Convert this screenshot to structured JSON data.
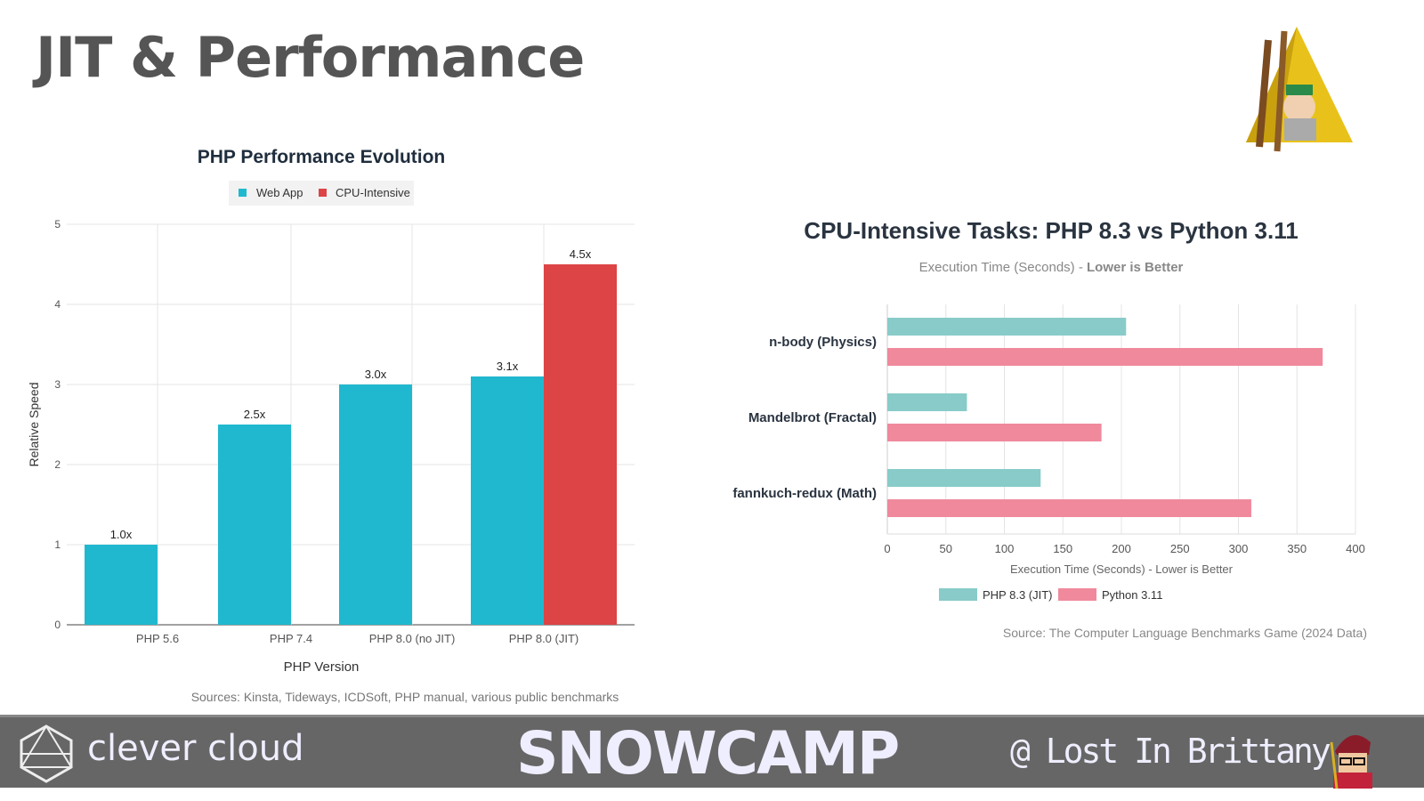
{
  "slide": {
    "title": "JIT & Performance",
    "footer": {
      "left_brand": "clever cloud",
      "center_brand": "SNOWCAMP",
      "right_handle": "@ Lost In Brittany"
    }
  },
  "colors": {
    "web_app": "#20b8cf",
    "cpu_intensive": "#dc4445",
    "php": "#88cbc9",
    "python": "#f0899c",
    "title": "#555555",
    "footer_bg": "#666666"
  },
  "chart_data": [
    {
      "type": "bar",
      "title": "PHP Performance Evolution",
      "xlabel": "PHP Version",
      "ylabel": "Relative Speed",
      "ylim": [
        0,
        5
      ],
      "yticks": [
        "0",
        "1",
        "2",
        "3",
        "4",
        "5"
      ],
      "grid": true,
      "legend_placement": "top",
      "categories": [
        "PHP 5.6",
        "PHP 7.4",
        "PHP 8.0 (no JIT)",
        "PHP 8.0 (JIT)"
      ],
      "series": [
        {
          "name": "Web App",
          "values": [
            1.0,
            2.5,
            3.0,
            3.1
          ],
          "labels": [
            "1.0x",
            "2.5x",
            "3.0x",
            "3.1x"
          ]
        },
        {
          "name": "CPU-Intensive",
          "values": [
            null,
            null,
            null,
            4.5
          ],
          "labels": [
            "",
            "",
            "",
            "4.5x"
          ]
        }
      ],
      "source": "Sources: Kinsta, Tideways, ICDSoft, PHP manual, various public benchmarks"
    },
    {
      "type": "bar",
      "orientation": "horizontal",
      "title": "CPU-Intensive Tasks: PHP 8.3 vs Python 3.11",
      "subtitle_plain": "Execution Time (Seconds) - ",
      "subtitle_bold": "Lower is Better",
      "xlabel": "Execution Time (Seconds) - Lower is Better",
      "xlim": [
        0,
        400
      ],
      "xticks": [
        "0",
        "50",
        "100",
        "150",
        "200",
        "250",
        "300",
        "350",
        "400"
      ],
      "grid": true,
      "legend_placement": "bottom",
      "categories": [
        "n-body (Physics)",
        "Mandelbrot (Fractal)",
        "fannkuch-redux (Math)"
      ],
      "series": [
        {
          "name": "PHP 8.3 (JIT)",
          "values": [
            204,
            68,
            131
          ]
        },
        {
          "name": "Python 3.11",
          "values": [
            372,
            183,
            311
          ]
        }
      ],
      "source": "Source: The Computer Language Benchmarks Game (2024 Data)"
    }
  ]
}
